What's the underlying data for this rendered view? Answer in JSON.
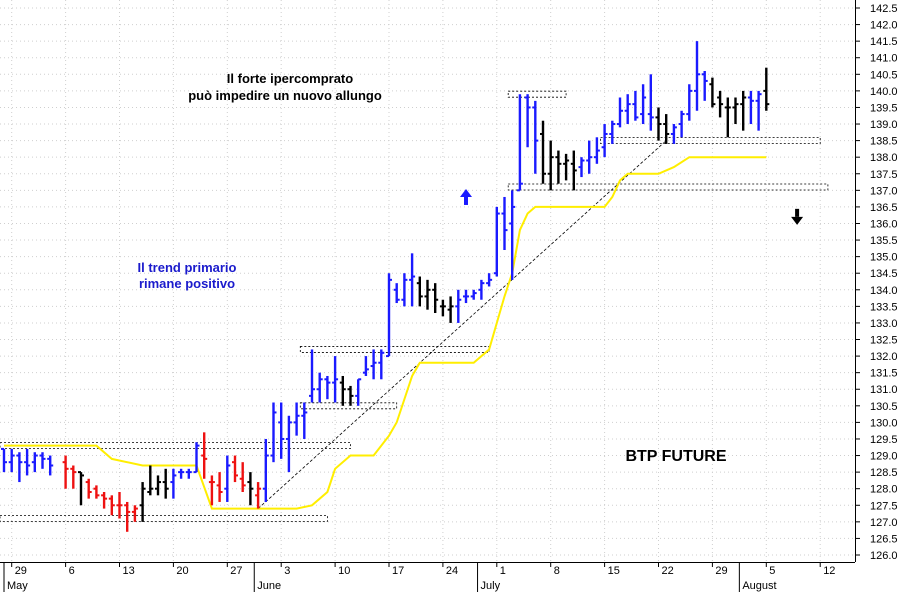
{
  "chart_data": {
    "type": "ohlc-bar",
    "title": "BTP FUTURE",
    "ylim": [
      126,
      142.5
    ],
    "y_ticks": [
      "142.5",
      "142.0",
      "141.5",
      "141.0",
      "140.5",
      "140.0",
      "139.5",
      "139.0",
      "138.5",
      "138.0",
      "137.5",
      "137.0",
      "136.5",
      "136.0",
      "135.5",
      "135.0",
      "134.5",
      "134.0",
      "133.5",
      "133.0",
      "132.5",
      "132.0",
      "131.5",
      "131.0",
      "130.5",
      "130.0",
      "129.5",
      "129.0",
      "128.5",
      "128.0",
      "127.5",
      "127.0",
      "126.5",
      "126.0"
    ],
    "x_tick_labels": [
      "29",
      "6",
      "13",
      "20",
      "27",
      "3",
      "10",
      "17",
      "24",
      "1",
      "8",
      "15",
      "22",
      "29",
      "5",
      "12"
    ],
    "x_tick_index": [
      1,
      8,
      15,
      22,
      29,
      36,
      43,
      50,
      57,
      64,
      71,
      78,
      85,
      92,
      99,
      106
    ],
    "month_labels": [
      "May",
      "June",
      "July",
      "August"
    ],
    "month_index": [
      0,
      32.5,
      61.5,
      95.5
    ],
    "annotations": [
      {
        "text": "Il forte ipercomprato",
        "color": "#000000"
      },
      {
        "text": "può impedire un nuovo allungo",
        "color": "#000000"
      },
      {
        "text": "Il trend primario",
        "color": "#1a1acc"
      },
      {
        "text": "rimane positivo",
        "color": "#1a1acc"
      }
    ],
    "colors": {
      "up": "#1a1aff",
      "neutral": "#000000",
      "down": "#ee1111",
      "stop_line": "#ffee00"
    },
    "series": [
      {
        "name": "price",
        "bars": [
          [
            0,
            129.2,
            129.2,
            128.5,
            128.8,
            "b"
          ],
          [
            1,
            128.8,
            129.2,
            128.5,
            129.0,
            "b"
          ],
          [
            2,
            129.0,
            129.1,
            128.2,
            128.8,
            "b"
          ],
          [
            3,
            128.8,
            129.2,
            128.4,
            128.7,
            "b"
          ],
          [
            4,
            128.8,
            129.1,
            128.5,
            129.0,
            "b"
          ],
          [
            5,
            129.0,
            129.1,
            128.6,
            128.9,
            "b"
          ],
          [
            6,
            128.9,
            129.0,
            128.4,
            128.7,
            "b"
          ],
          [
            8,
            128.8,
            129.0,
            128.0,
            128.6,
            "r"
          ],
          [
            9,
            128.6,
            128.7,
            128.0,
            128.5,
            "r"
          ],
          [
            10,
            128.5,
            128.5,
            127.5,
            128.4,
            "k"
          ],
          [
            11,
            128.2,
            128.3,
            127.7,
            127.9,
            "r"
          ],
          [
            12,
            128.0,
            128.1,
            127.7,
            127.8,
            "r"
          ],
          [
            13,
            127.8,
            127.9,
            127.4,
            127.7,
            "r"
          ],
          [
            14,
            127.7,
            127.8,
            127.2,
            127.5,
            "r"
          ],
          [
            15,
            127.5,
            127.9,
            127.1,
            127.5,
            "r"
          ],
          [
            16,
            127.5,
            127.6,
            126.7,
            127.3,
            "r"
          ],
          [
            17,
            127.3,
            127.5,
            127.0,
            127.4,
            "r"
          ],
          [
            18,
            127.5,
            128.2,
            127.0,
            128.0,
            "k"
          ],
          [
            19,
            127.9,
            128.7,
            127.8,
            128.0,
            "k"
          ],
          [
            20,
            128.0,
            128.4,
            127.8,
            128.2,
            "k"
          ],
          [
            21,
            128.2,
            128.6,
            127.7,
            128.0,
            "k"
          ],
          [
            22,
            128.2,
            128.6,
            127.7,
            128.4,
            "b"
          ],
          [
            23,
            128.5,
            128.6,
            128.3,
            128.5,
            "b"
          ],
          [
            24,
            128.5,
            128.6,
            128.3,
            128.5,
            "b"
          ],
          [
            25,
            128.5,
            129.4,
            128.5,
            129.3,
            "b"
          ],
          [
            26,
            129.0,
            129.7,
            128.3,
            128.9,
            "r"
          ],
          [
            27,
            128.2,
            128.4,
            127.5,
            128.2,
            "r"
          ],
          [
            28,
            128.1,
            128.5,
            127.6,
            127.9,
            "r"
          ],
          [
            29,
            128.0,
            129.0,
            127.6,
            128.7,
            "b"
          ],
          [
            30,
            128.8,
            129.0,
            128.2,
            128.4,
            "r"
          ],
          [
            31,
            128.3,
            128.8,
            127.9,
            128.1,
            "r"
          ],
          [
            32,
            128.2,
            128.5,
            127.5,
            128.0,
            "k"
          ],
          [
            33,
            127.8,
            128.2,
            127.4,
            128.0,
            "r"
          ],
          [
            34,
            128.0,
            129.5,
            127.6,
            129.0,
            "b"
          ],
          [
            35,
            129.0,
            130.6,
            128.8,
            130.3,
            "b"
          ],
          [
            36,
            130.0,
            130.6,
            128.9,
            129.5,
            "b"
          ],
          [
            37,
            129.5,
            130.2,
            128.5,
            130.0,
            "b"
          ],
          [
            38,
            130.0,
            130.6,
            129.6,
            130.2,
            "b"
          ],
          [
            39,
            130.2,
            130.6,
            129.5,
            130.3,
            "b"
          ],
          [
            40,
            130.8,
            132.2,
            130.6,
            131.0,
            "b"
          ],
          [
            41,
            131.0,
            131.5,
            130.6,
            131.3,
            "b"
          ],
          [
            42,
            131.3,
            131.4,
            130.7,
            131.2,
            "b"
          ],
          [
            43,
            131.2,
            132.0,
            130.6,
            131.3,
            "b"
          ],
          [
            44,
            131.2,
            131.4,
            130.5,
            131.0,
            "k"
          ],
          [
            45,
            131.0,
            131.1,
            130.5,
            130.8,
            "k"
          ],
          [
            46,
            130.8,
            131.3,
            130.5,
            131.3,
            "b"
          ],
          [
            47,
            131.5,
            132.0,
            131.4,
            131.6,
            "b"
          ],
          [
            48,
            131.7,
            132.2,
            131.3,
            131.8,
            "b"
          ],
          [
            49,
            131.8,
            132.2,
            131.3,
            132.1,
            "b"
          ],
          [
            50,
            132.0,
            134.5,
            132.0,
            134.3,
            "b"
          ],
          [
            51,
            134.0,
            134.2,
            133.6,
            133.7,
            "b"
          ],
          [
            52,
            133.7,
            134.5,
            133.5,
            134.3,
            "b"
          ],
          [
            53,
            134.3,
            135.1,
            133.5,
            134.4,
            "b"
          ],
          [
            54,
            134.2,
            134.4,
            133.5,
            133.8,
            "k"
          ],
          [
            55,
            133.8,
            134.3,
            133.4,
            134.0,
            "k"
          ],
          [
            56,
            134.0,
            134.2,
            133.3,
            133.7,
            "k"
          ],
          [
            57,
            133.5,
            133.7,
            133.2,
            133.5,
            "k"
          ],
          [
            58,
            133.4,
            133.8,
            133.0,
            133.5,
            "k"
          ],
          [
            59,
            133.5,
            134.0,
            133.0,
            133.7,
            "b"
          ],
          [
            60,
            133.8,
            134.0,
            133.6,
            133.8,
            "b"
          ],
          [
            61,
            133.8,
            134.0,
            133.7,
            133.9,
            "b"
          ],
          [
            62,
            134.0,
            134.3,
            133.7,
            134.2,
            "b"
          ],
          [
            63,
            134.2,
            134.5,
            134.1,
            134.3,
            "b"
          ],
          [
            64,
            134.5,
            136.5,
            134.4,
            136.3,
            "b"
          ],
          [
            65,
            136.3,
            136.8,
            135.2,
            135.8,
            "b"
          ],
          [
            66,
            136.0,
            137.0,
            134.3,
            136.5,
            "b"
          ],
          [
            67,
            137.0,
            139.9,
            137.0,
            137.2,
            "b"
          ],
          [
            68,
            139.8,
            139.9,
            138.3,
            139.5,
            "b"
          ],
          [
            69,
            139.5,
            139.7,
            137.5,
            138.5,
            "b"
          ],
          [
            70,
            138.7,
            139.1,
            137.2,
            137.5,
            "k"
          ],
          [
            71,
            137.5,
            138.5,
            137.0,
            138.0,
            "k"
          ],
          [
            72,
            138.0,
            138.2,
            137.2,
            137.8,
            "k"
          ],
          [
            73,
            137.8,
            138.1,
            137.3,
            137.9,
            "k"
          ],
          [
            74,
            137.8,
            138.2,
            137.0,
            137.6,
            "k"
          ],
          [
            75,
            137.7,
            138.0,
            137.4,
            137.9,
            "b"
          ],
          [
            76,
            137.9,
            138.5,
            137.5,
            138.0,
            "b"
          ],
          [
            77,
            138.0,
            138.6,
            137.8,
            138.2,
            "b"
          ],
          [
            78,
            138.3,
            139.0,
            138.0,
            138.7,
            "b"
          ],
          [
            79,
            138.7,
            139.1,
            138.4,
            139.0,
            "b"
          ],
          [
            80,
            139.0,
            139.8,
            138.9,
            139.4,
            "b"
          ],
          [
            81,
            139.4,
            139.9,
            139.0,
            139.6,
            "b"
          ],
          [
            82,
            139.6,
            140.0,
            139.1,
            139.2,
            "b"
          ],
          [
            83,
            139.3,
            140.2,
            139.0,
            139.8,
            "b"
          ],
          [
            84,
            139.3,
            140.5,
            138.8,
            139.2,
            "b"
          ],
          [
            85,
            139.2,
            139.5,
            138.5,
            139.0,
            "k"
          ],
          [
            86,
            139.0,
            139.3,
            138.4,
            138.7,
            "k"
          ],
          [
            87,
            138.7,
            139.0,
            138.4,
            138.9,
            "b"
          ],
          [
            88,
            139.0,
            139.4,
            138.6,
            139.3,
            "b"
          ],
          [
            89,
            139.3,
            140.2,
            139.1,
            140.0,
            "b"
          ],
          [
            90,
            140.0,
            141.5,
            139.4,
            140.5,
            "b"
          ],
          [
            91,
            140.5,
            140.6,
            139.7,
            140.3,
            "b"
          ],
          [
            92,
            140.2,
            140.4,
            139.5,
            139.6,
            "k"
          ],
          [
            93,
            139.8,
            140.0,
            139.2,
            139.6,
            "k"
          ],
          [
            94,
            139.5,
            139.8,
            138.6,
            139.5,
            "k"
          ],
          [
            95,
            139.5,
            139.8,
            139.0,
            139.6,
            "k"
          ],
          [
            96,
            139.6,
            140.0,
            138.8,
            139.8,
            "k"
          ],
          [
            97,
            139.8,
            140.0,
            139.0,
            139.7,
            "b"
          ],
          [
            98,
            139.7,
            140.0,
            138.8,
            139.9,
            "b"
          ],
          [
            99,
            140.0,
            140.7,
            139.4,
            139.6,
            "k"
          ]
        ]
      },
      {
        "name": "stop line",
        "points": [
          [
            0,
            129.3
          ],
          [
            12,
            129.3
          ],
          [
            14,
            128.9
          ],
          [
            18,
            128.7
          ],
          [
            25,
            128.7
          ],
          [
            27,
            127.4
          ],
          [
            34,
            127.4
          ],
          [
            38,
            127.4
          ],
          [
            40,
            127.5
          ],
          [
            42,
            127.9
          ],
          [
            43,
            128.6
          ],
          [
            45,
            129.0
          ],
          [
            48,
            129.0
          ],
          [
            50,
            129.6
          ],
          [
            51,
            130.0
          ],
          [
            53,
            131.4
          ],
          [
            54,
            131.8
          ],
          [
            61,
            131.8
          ],
          [
            63,
            132.2
          ],
          [
            65,
            133.8
          ],
          [
            66,
            134.5
          ],
          [
            67,
            135.8
          ],
          [
            68,
            136.3
          ],
          [
            69,
            136.5
          ],
          [
            76,
            136.5
          ],
          [
            78,
            136.5
          ],
          [
            79,
            136.8
          ],
          [
            80,
            137.3
          ],
          [
            81,
            137.5
          ],
          [
            85,
            137.5
          ],
          [
            87,
            137.7
          ],
          [
            89,
            138.0
          ],
          [
            99,
            138.0
          ]
        ]
      },
      {
        "name": "trendline",
        "points": [
          [
            33,
            127.4
          ],
          [
            86,
            138.5
          ]
        ]
      }
    ],
    "levels": [
      {
        "y": 129.3,
        "x0": 0,
        "x1": 45
      },
      {
        "y": 127.1,
        "x0": 0,
        "x1": 42
      },
      {
        "y": 132.2,
        "x0": 39,
        "x1": 63
      },
      {
        "y": 130.5,
        "x0": 39,
        "x1": 51
      },
      {
        "y": 139.9,
        "x0": 66,
        "x1": 73
      },
      {
        "y": 137.1,
        "x0": 66,
        "x1": 107
      },
      {
        "y": 138.5,
        "x0": 78,
        "x1": 106
      }
    ],
    "arrows": [
      {
        "dir": "up",
        "x": 60,
        "y": 136.8,
        "color": "#1a1aff"
      },
      {
        "dir": "down",
        "x": 103,
        "y": 136.2,
        "color": "#000000"
      }
    ],
    "grid": true
  }
}
